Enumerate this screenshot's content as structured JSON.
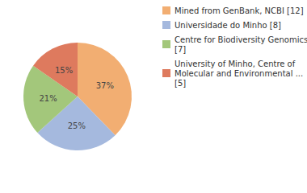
{
  "chart_data": {
    "type": "pie",
    "categories": [
      "Mined from GenBank, NCBI [12]",
      "Universidade do Minho [8]",
      "Centre for Biodiversity Genomics [7]",
      "University of Minho, Centre of Molecular and Environmental ... [5]"
    ],
    "values": [
      37,
      25,
      21,
      15
    ],
    "value_labels": [
      "37%",
      "25%",
      "21%",
      "15%"
    ],
    "colors": [
      "#f2ae72",
      "#a5b9de",
      "#a3c77b",
      "#de7a5e"
    ],
    "data_labels": true,
    "legend": "right"
  }
}
